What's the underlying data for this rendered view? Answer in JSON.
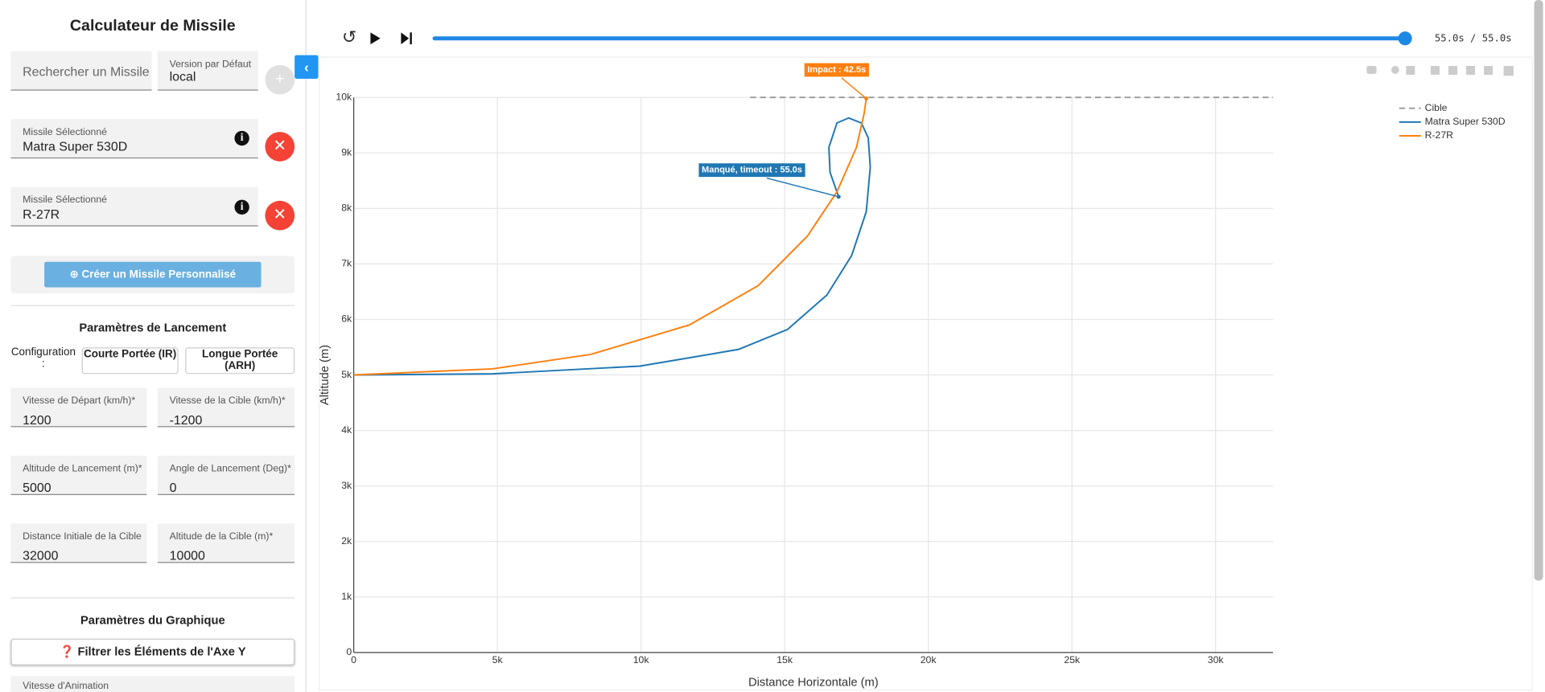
{
  "sidebar": {
    "title": "Calculateur de Missile",
    "search_placeholder": "Rechercher un Missile",
    "version": {
      "label": "Version par Défaut",
      "value": "local"
    },
    "add_button": "+",
    "selected_missiles": [
      {
        "label": "Missile Sélectionné",
        "value": "Matra Super 530D"
      },
      {
        "label": "Missile Sélectionné",
        "value": "R-27R"
      }
    ],
    "create_button": "Créer un Missile Personnalisé",
    "launch_section": {
      "title": "Paramètres de Lancement",
      "config_label": "Configuration :",
      "config_options": [
        "Courte Portée (IR)",
        "Longue Portée (ARH)"
      ],
      "fields": [
        {
          "label": "Vitesse de Départ (km/h)*",
          "value": "1200"
        },
        {
          "label": "Vitesse de la Cible (km/h)*",
          "value": "-1200"
        },
        {
          "label": "Altitude de Lancement (m)*",
          "value": "5000"
        },
        {
          "label": "Angle de Lancement (Deg)*",
          "value": "0"
        },
        {
          "label": "Distance Initiale de la Cible (m)*",
          "value": "32000"
        },
        {
          "label": "Altitude de la Cible (m)*",
          "value": "10000"
        }
      ]
    },
    "graph_section": {
      "title": "Paramètres du Graphique",
      "filter_button": "Filtrer les Éléments de l'Axe Y",
      "animation_label": "Vitesse d'Animation"
    }
  },
  "player": {
    "time": "55.0s / 55.0s"
  },
  "chart_data": {
    "type": "line",
    "x_label": "Distance Horizontale (m)",
    "y_label": "Altitude (m)",
    "xlim": [
      0,
      32000
    ],
    "ylim": [
      0,
      10000
    ],
    "xticks": [
      0,
      {
        "value": 5000,
        "label": "5k"
      },
      {
        "value": 10000,
        "label": "10k"
      },
      {
        "value": 15000,
        "label": "15k"
      },
      {
        "value": 20000,
        "label": "20k"
      },
      {
        "value": 25000,
        "label": "25k"
      },
      {
        "value": 30000,
        "label": "30k"
      }
    ],
    "yticks": [
      0,
      {
        "value": 1000,
        "label": "1k"
      },
      {
        "value": 2000,
        "label": "2k"
      },
      {
        "value": 3000,
        "label": "3k"
      },
      {
        "value": 4000,
        "label": "4k"
      },
      {
        "value": 5000,
        "label": "5k"
      },
      {
        "value": 6000,
        "label": "6k"
      },
      {
        "value": 7000,
        "label": "7k"
      },
      {
        "value": 8000,
        "label": "8k"
      },
      {
        "value": 9000,
        "label": "9k"
      },
      {
        "value": 10000,
        "label": "10k"
      }
    ],
    "grid": true,
    "legend": "top-right",
    "series": [
      {
        "name": "Cible",
        "color": "#999999",
        "dash": true,
        "x": [
          13800,
          32000
        ],
        "values": [
          10000,
          10000
        ]
      },
      {
        "name": "Matra Super 530D",
        "color": "#1f77b4",
        "dash": false,
        "x": [
          0,
          4830,
          9966,
          13390,
          15100,
          16470,
          17330,
          17840,
          17980,
          17910,
          17670,
          17230,
          16820,
          16540,
          16580,
          16880
        ],
        "values": [
          5000,
          5020,
          5160,
          5460,
          5820,
          6440,
          7150,
          7940,
          8740,
          9270,
          9540,
          9630,
          9540,
          9100,
          8650,
          8210
        ]
      },
      {
        "name": "R-27R",
        "color": "#ff7f0e",
        "dash": false,
        "x": [
          0,
          4830,
          8250,
          11680,
          14080,
          15790,
          16820,
          17500,
          17770,
          17840
        ],
        "values": [
          5000,
          5110,
          5370,
          5900,
          6610,
          7500,
          8300,
          9100,
          9720,
          9980
        ]
      }
    ],
    "annotations": [
      {
        "text": "Impact : 42.5s",
        "color": "#ff7f0e",
        "x": 17840,
        "y": 9980
      },
      {
        "text": "Manqué, timeout : 55.0s",
        "color": "#1f77b4",
        "x": 16880,
        "y": 8210
      }
    ]
  }
}
